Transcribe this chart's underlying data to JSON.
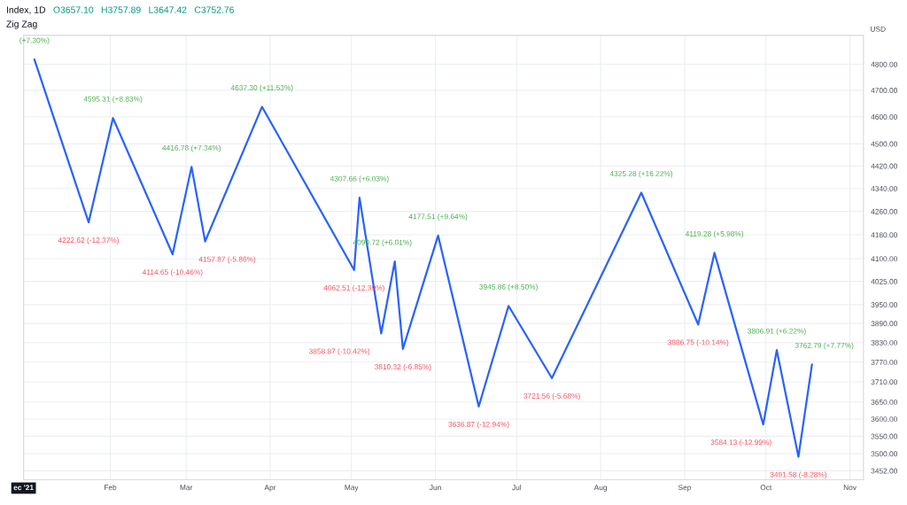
{
  "chart_data": {
    "type": "line",
    "title": "Index, 1D",
    "subtitle": "Zig Zag",
    "ylabel": "USD",
    "annotations": [
      "O3657.10",
      "H3757.89",
      "L3647.42",
      "C3752.76",
      {
        "text": "(+7.30%)",
        "x": "2022-01-04",
        "y": 4819
      }
    ],
    "x": [
      "2022-01-04",
      "2022-01-24",
      "2022-02-02",
      "2022-02-24",
      "2022-03-03",
      "2022-03-08",
      "2022-03-29",
      "2022-05-02",
      "2022-05-04",
      "2022-05-12",
      "2022-05-17",
      "2022-05-20",
      "2022-06-02",
      "2022-06-17",
      "2022-06-28",
      "2022-07-14",
      "2022-08-16",
      "2022-09-06",
      "2022-09-12",
      "2022-09-30",
      "2022-10-05",
      "2022-10-13",
      "2022-10-18"
    ],
    "values": [
      4819,
      4222.62,
      4595.31,
      4114.65,
      4416.78,
      4157.87,
      4637.3,
      4062.51,
      4307.66,
      3858.87,
      4090.72,
      3810.32,
      4177.51,
      3636.87,
      3945.86,
      3721.56,
      4325.28,
      3886.75,
      4119.28,
      3584.13,
      3806.91,
      3491.58,
      3762.79
    ],
    "value_labels": [
      null,
      "4222.62 (-12.37%)",
      "4595.31 (+8.83%)",
      "4114.65 (-10.46%)",
      "4416.78 (+7.34%)",
      "4157.87 (-5.86%)",
      "4637.30 (+11.53%)",
      "4062.51 (-12.39%)",
      "4307.66 (+6.03%)",
      "3858.87 (-10.42%)",
      "4090.72 (+6.01%)",
      "3810.32 (-6.85%)",
      "4177.51 (+9.64%)",
      "3636.87 (-12.94%)",
      "3945.86 (+8.50%)",
      "3721.56 (-5.68%)",
      "4325.28 (+16.22%)",
      "3886.75 (-10.14%)",
      "4119.28 (+5.98%)",
      "3584.13 (-12.99%)",
      "3806.91 (+6.22%)",
      "3491.58 (-8.28%)",
      "3762.79 (+7.77%)"
    ],
    "color": "#2962ff",
    "log": true,
    "grid": true,
    "xlim": [
      "2021-12-31",
      "2022-11-06"
    ],
    "xticks": [
      {
        "value": "2021-12-31",
        "label": "ec '21"
      },
      {
        "value": "2022-02-01",
        "label": "Feb"
      },
      {
        "value": "2022-03-01",
        "label": "Mar"
      },
      {
        "value": "2022-04-01",
        "label": "Apr"
      },
      {
        "value": "2022-05-01",
        "label": "May"
      },
      {
        "value": "2022-06-01",
        "label": "Jun"
      },
      {
        "value": "2022-07-01",
        "label": "Jul"
      },
      {
        "value": "2022-08-01",
        "label": "Aug"
      },
      {
        "value": "2022-09-01",
        "label": "Sep"
      },
      {
        "value": "2022-10-01",
        "label": "Oct"
      },
      {
        "value": "2022-11-01",
        "label": "Nov"
      }
    ],
    "ylim": [
      3427,
      4914
    ],
    "yticks": [
      {
        "value": 4800,
        "label": "4800.00"
      },
      {
        "value": 4700,
        "label": "4700.00"
      },
      {
        "value": 4600,
        "label": "4600.00"
      },
      {
        "value": 4500,
        "label": "4500.00"
      },
      {
        "value": 4420,
        "label": "4420.00"
      },
      {
        "value": 4340,
        "label": "4340.00"
      },
      {
        "value": 4260,
        "label": "4260.00"
      },
      {
        "value": 4180,
        "label": "4180.00"
      },
      {
        "value": 4100,
        "label": "4100.00"
      },
      {
        "value": 4025,
        "label": "4025.00"
      },
      {
        "value": 3950,
        "label": "3950.00"
      },
      {
        "value": 3890,
        "label": "3890.00"
      },
      {
        "value": 3830,
        "label": "3830.00"
      },
      {
        "value": 3770,
        "label": "3770.00"
      },
      {
        "value": 3710,
        "label": "3710.00"
      },
      {
        "value": 3650,
        "label": "3650.00"
      },
      {
        "value": 3600,
        "label": "3600.00"
      },
      {
        "value": 3550,
        "label": "3550.00"
      },
      {
        "value": 3500,
        "label": "3500.00"
      },
      {
        "value": 3452,
        "label": "3452.00"
      }
    ]
  }
}
